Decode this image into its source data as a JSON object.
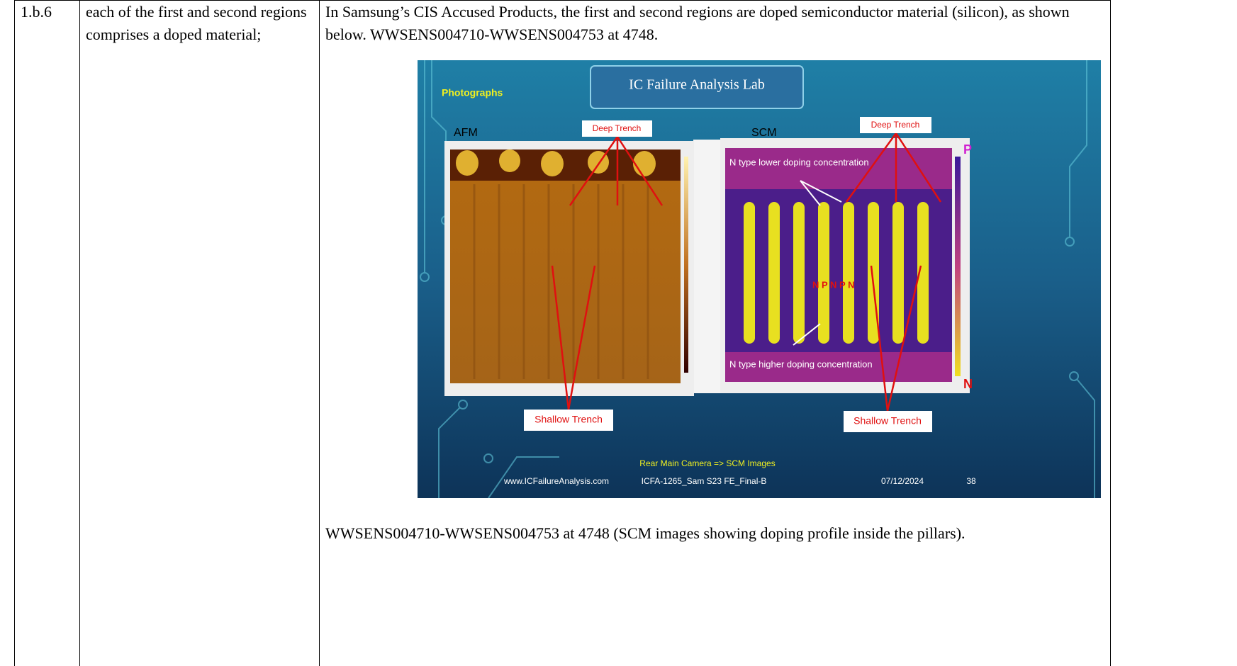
{
  "row": {
    "claim_id": "1.b.6",
    "claim_text": "each of the first and second regions comprises a doped material;",
    "evidence": {
      "paragraph": "In Samsung’s CIS Accused Products, the first and second regions are doped semiconductor material (silicon), as shown below.  WWSENS004710-WWSENS004753 at 4748.",
      "figure": {
        "banner": "IC Failure Analysis Lab",
        "section": "Photographs",
        "left_label": "AFM",
        "right_label": "SCM",
        "deep_trench_left": "Deep Trench",
        "deep_trench_right": "Deep Trench",
        "lower_doping": "N type lower doping concentration",
        "higher_doping": "N type higher doping concentration",
        "npnpn": "N P N P N",
        "scale_top": "P",
        "scale_bottom": "N",
        "shallow_trench_left": "Shallow Trench",
        "shallow_trench_right": "Shallow Trench",
        "subtitle": "Rear Main Camera => SCM Images",
        "footer_site": "www.ICFailureAnalysis.com",
        "footer_doc": "ICFA-1265_Sam S23 FE_Final-B",
        "footer_date": "07/12/2024",
        "footer_page": "38"
      },
      "caption": "WWSENS004710-WWSENS004753 at 4748 (SCM images showing doping profile inside the pillars)."
    }
  }
}
